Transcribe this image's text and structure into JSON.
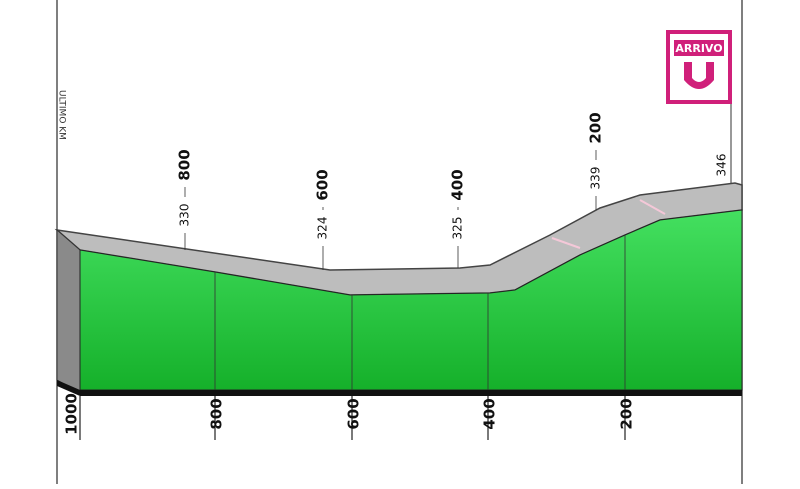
{
  "side_label": "ULTIMO KM",
  "finish_label": "ARRIVO",
  "bottom_ticks": [
    "1000",
    "800",
    "600",
    "400",
    "200"
  ],
  "markers": [
    {
      "distance": "800",
      "altitude": "330"
    },
    {
      "distance": "600",
      "altitude": "324"
    },
    {
      "distance": "400",
      "altitude": "325"
    },
    {
      "distance": "200",
      "altitude": "339"
    },
    {
      "altitude": "346"
    }
  ]
}
